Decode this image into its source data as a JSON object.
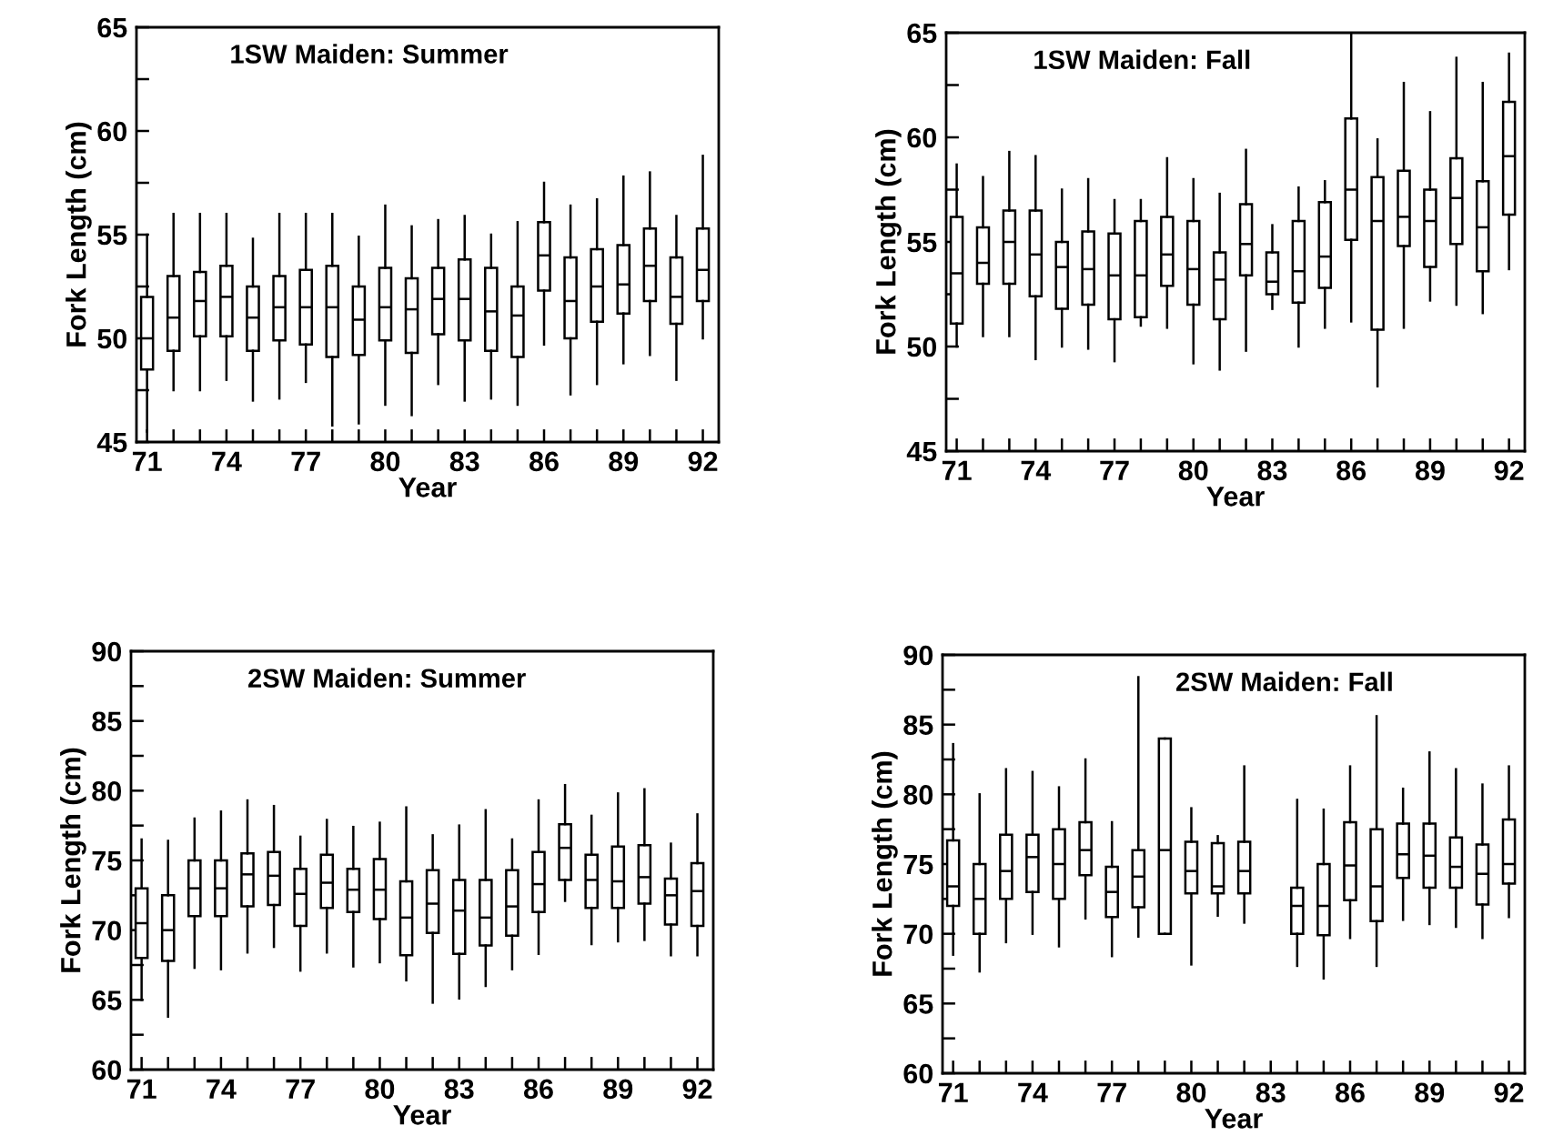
{
  "chart_data": [
    {
      "type": "box",
      "title": "1SW Maiden: Summer",
      "xlabel": "Year",
      "ylabel": "Fork Length (cm)",
      "x": [
        71,
        72,
        73,
        74,
        75,
        76,
        77,
        78,
        79,
        80,
        81,
        82,
        83,
        84,
        85,
        86,
        87,
        88,
        89,
        90,
        91,
        92
      ],
      "xlim": [
        70.6,
        92.6
      ],
      "xticks": [
        71,
        {
          "value": 72,
          "label": null
        },
        {
          "value": 73,
          "label": null
        },
        74,
        {
          "value": 75,
          "label": null
        },
        {
          "value": 76,
          "label": null
        },
        77,
        {
          "value": 78,
          "label": null
        },
        {
          "value": 79,
          "label": null
        },
        80,
        {
          "value": 81,
          "label": null
        },
        {
          "value": 82,
          "label": null
        },
        83,
        {
          "value": 84,
          "label": null
        },
        {
          "value": 85,
          "label": null
        },
        86,
        {
          "value": 87,
          "label": null
        },
        {
          "value": 88,
          "label": null
        },
        89,
        {
          "value": 90,
          "label": null
        },
        {
          "value": 91,
          "label": null
        },
        92
      ],
      "ylim": [
        45,
        65
      ],
      "yticks": [
        45,
        {
          "value": 47.5,
          "label": null
        },
        50,
        {
          "value": 52.5,
          "label": null
        },
        55,
        {
          "value": 57.5,
          "label": null
        },
        60,
        {
          "value": 62.5,
          "label": null
        },
        65
      ],
      "grid": false,
      "boxes": [
        {
          "low": 45.5,
          "q1": 48.5,
          "median": 50,
          "q3": 52,
          "high": 55
        },
        {
          "low": 47.5,
          "q1": 49.4,
          "median": 51,
          "q3": 53,
          "high": 56
        },
        {
          "low": 47.5,
          "q1": 50.1,
          "median": 51.8,
          "q3": 53.2,
          "high": 56
        },
        {
          "low": 48,
          "q1": 50.1,
          "median": 52,
          "q3": 53.5,
          "high": 56
        },
        {
          "low": 47,
          "q1": 49.4,
          "median": 51,
          "q3": 52.5,
          "high": 54.8
        },
        {
          "low": 47.1,
          "q1": 49.9,
          "median": 51.5,
          "q3": 53,
          "high": 56
        },
        {
          "low": 47.9,
          "q1": 49.7,
          "median": 51.5,
          "q3": 53.3,
          "high": 56
        },
        {
          "low": 45.8,
          "q1": 49.1,
          "median": 51.5,
          "q3": 53.5,
          "high": 56
        },
        {
          "low": 45.9,
          "q1": 49.2,
          "median": 50.9,
          "q3": 52.5,
          "high": 54.9
        },
        {
          "low": 46.8,
          "q1": 49.9,
          "median": 51.5,
          "q3": 53.4,
          "high": 56.4
        },
        {
          "low": 46.3,
          "q1": 49.3,
          "median": 51.4,
          "q3": 52.9,
          "high": 55.4
        },
        {
          "low": 47.8,
          "q1": 50.2,
          "median": 51.9,
          "q3": 53.4,
          "high": 55.7
        },
        {
          "low": 47,
          "q1": 49.9,
          "median": 51.9,
          "q3": 53.8,
          "high": 55.9
        },
        {
          "low": 47.1,
          "q1": 49.4,
          "median": 51.3,
          "q3": 53.4,
          "high": 55
        },
        {
          "low": 46.8,
          "q1": 49.1,
          "median": 51.1,
          "q3": 52.5,
          "high": 55.6
        },
        {
          "low": 49.7,
          "q1": 52.3,
          "median": 54,
          "q3": 55.6,
          "high": 57.5
        },
        {
          "low": 47.3,
          "q1": 50,
          "median": 51.8,
          "q3": 53.9,
          "high": 56.4
        },
        {
          "low": 47.8,
          "q1": 50.8,
          "median": 52.5,
          "q3": 54.3,
          "high": 56.7
        },
        {
          "low": 48.8,
          "q1": 51.2,
          "median": 52.6,
          "q3": 54.5,
          "high": 57.8
        },
        {
          "low": 49.2,
          "q1": 51.8,
          "median": 53.5,
          "q3": 55.3,
          "high": 58
        },
        {
          "low": 48,
          "q1": 50.7,
          "median": 52,
          "q3": 53.9,
          "high": 55.9
        },
        {
          "low": 50,
          "q1": 51.8,
          "median": 53.3,
          "q3": 55.3,
          "high": 58.8
        }
      ]
    },
    {
      "type": "box",
      "title": "1SW Maiden: Fall",
      "xlabel": "Year",
      "ylabel": "Fork Length (cm)",
      "x": [
        71,
        72,
        73,
        74,
        75,
        76,
        77,
        78,
        79,
        80,
        81,
        82,
        83,
        84,
        85,
        86,
        87,
        88,
        89,
        90,
        91,
        92
      ],
      "xlim": [
        70.6,
        92.6
      ],
      "xticks": [
        71,
        {
          "value": 72,
          "label": null
        },
        {
          "value": 73,
          "label": null
        },
        74,
        {
          "value": 75,
          "label": null
        },
        {
          "value": 76,
          "label": null
        },
        77,
        {
          "value": 78,
          "label": null
        },
        {
          "value": 79,
          "label": null
        },
        80,
        {
          "value": 81,
          "label": null
        },
        {
          "value": 82,
          "label": null
        },
        83,
        {
          "value": 84,
          "label": null
        },
        {
          "value": 85,
          "label": null
        },
        86,
        {
          "value": 87,
          "label": null
        },
        {
          "value": 88,
          "label": null
        },
        89,
        {
          "value": 90,
          "label": null
        },
        {
          "value": 91,
          "label": null
        },
        92
      ],
      "ylim": [
        45,
        65
      ],
      "yticks": [
        45,
        {
          "value": 47.5,
          "label": null
        },
        50,
        {
          "value": 52.5,
          "label": null
        },
        55,
        {
          "value": 57.5,
          "label": null
        },
        60,
        {
          "value": 62.5,
          "label": null
        },
        65
      ],
      "grid": false,
      "boxes": [
        {
          "low": 50,
          "q1": 51.1,
          "median": 53.5,
          "q3": 56.2,
          "high": 58.7
        },
        {
          "low": 50.5,
          "q1": 53,
          "median": 54,
          "q3": 55.7,
          "high": 58.1
        },
        {
          "low": 50.5,
          "q1": 53,
          "median": 55,
          "q3": 56.5,
          "high": 59.3
        },
        {
          "low": 49.4,
          "q1": 52.4,
          "median": 54.4,
          "q3": 56.5,
          "high": 59.1
        },
        {
          "low": 50,
          "q1": 51.8,
          "median": 53.8,
          "q3": 55,
          "high": 57.5
        },
        {
          "low": 49.9,
          "q1": 52,
          "median": 53.7,
          "q3": 55.5,
          "high": 58
        },
        {
          "low": 49.3,
          "q1": 51.3,
          "median": 53.4,
          "q3": 55.4,
          "high": 57
        },
        {
          "low": 51,
          "q1": 51.4,
          "median": 53.4,
          "q3": 56,
          "high": 57
        },
        {
          "low": 50.9,
          "q1": 52.9,
          "median": 54.4,
          "q3": 56.2,
          "high": 59
        },
        {
          "low": 49.2,
          "q1": 52,
          "median": 53.7,
          "q3": 56,
          "high": 58
        },
        {
          "low": 48.9,
          "q1": 51.3,
          "median": 53.2,
          "q3": 54.5,
          "high": 57.3
        },
        {
          "low": 49.8,
          "q1": 53.4,
          "median": 54.9,
          "q3": 56.8,
          "high": 59.4
        },
        {
          "low": 51.8,
          "q1": 52.5,
          "median": 53.1,
          "q3": 54.5,
          "high": 55.8
        },
        {
          "low": 50,
          "q1": 52.1,
          "median": 53.6,
          "q3": 56,
          "high": 57.6
        },
        {
          "low": 50.9,
          "q1": 52.8,
          "median": 54.3,
          "q3": 56.9,
          "high": 57.9
        },
        {
          "low": 51.2,
          "q1": 55.1,
          "median": 57.5,
          "q3": 60.9,
          "high": 65
        },
        {
          "low": 48.1,
          "q1": 50.8,
          "median": 56,
          "q3": 58.1,
          "high": 59.9
        },
        {
          "low": 50.9,
          "q1": 54.8,
          "median": 56.2,
          "q3": 58.4,
          "high": 62.6
        },
        {
          "low": 52.2,
          "q1": 53.8,
          "median": 56,
          "q3": 57.5,
          "high": 61.2
        },
        {
          "low": 52,
          "q1": 54.9,
          "median": 57.1,
          "q3": 59,
          "high": 63.8
        },
        {
          "low": 51.6,
          "q1": 53.6,
          "median": 55.7,
          "q3": 57.9,
          "high": 62.6
        },
        {
          "low": 53.7,
          "q1": 56.3,
          "median": 59.1,
          "q3": 61.7,
          "high": 64
        }
      ]
    },
    {
      "type": "box",
      "title": "2SW Maiden: Summer",
      "xlabel": "Year",
      "ylabel": "Fork Length (cm)",
      "x": [
        71,
        72,
        73,
        74,
        75,
        76,
        77,
        78,
        79,
        80,
        81,
        82,
        83,
        84,
        85,
        86,
        87,
        88,
        89,
        90,
        91,
        92
      ],
      "xlim": [
        70.6,
        92.6
      ],
      "xticks": [
        71,
        {
          "value": 72,
          "label": null
        },
        {
          "value": 73,
          "label": null
        },
        74,
        {
          "value": 75,
          "label": null
        },
        {
          "value": 76,
          "label": null
        },
        77,
        {
          "value": 78,
          "label": null
        },
        {
          "value": 79,
          "label": null
        },
        80,
        {
          "value": 81,
          "label": null
        },
        {
          "value": 82,
          "label": null
        },
        83,
        {
          "value": 84,
          "label": null
        },
        {
          "value": 85,
          "label": null
        },
        86,
        {
          "value": 87,
          "label": null
        },
        {
          "value": 88,
          "label": null
        },
        89,
        {
          "value": 90,
          "label": null
        },
        {
          "value": 91,
          "label": null
        },
        92
      ],
      "ylim": [
        60,
        90
      ],
      "yticks": [
        60,
        {
          "value": 62.5,
          "label": null
        },
        65,
        {
          "value": 67.5,
          "label": null
        },
        70,
        {
          "value": 72.5,
          "label": null
        },
        75,
        {
          "value": 77.5,
          "label": null
        },
        80,
        {
          "value": 82.5,
          "label": null
        },
        85,
        {
          "value": 87.5,
          "label": null
        },
        90
      ],
      "grid": false,
      "boxes": [
        {
          "low": 65,
          "q1": 68,
          "median": 70.5,
          "q3": 73,
          "high": 76.5
        },
        {
          "low": 63.8,
          "q1": 67.8,
          "median": 70,
          "q3": 72.5,
          "high": 76.4
        },
        {
          "low": 67.3,
          "q1": 71,
          "median": 73,
          "q3": 75,
          "high": 78
        },
        {
          "low": 67.2,
          "q1": 71,
          "median": 73,
          "q3": 75,
          "high": 78.5
        },
        {
          "low": 68.4,
          "q1": 71.7,
          "median": 74,
          "q3": 75.5,
          "high": 79.3
        },
        {
          "low": 68.8,
          "q1": 71.8,
          "median": 73.9,
          "q3": 75.6,
          "high": 78.9
        },
        {
          "low": 67.1,
          "q1": 70.3,
          "median": 72.6,
          "q3": 74.4,
          "high": 76.7
        },
        {
          "low": 68.4,
          "q1": 71.6,
          "median": 73.4,
          "q3": 75.4,
          "high": 77.9
        },
        {
          "low": 67.4,
          "q1": 71.3,
          "median": 72.9,
          "q3": 74.4,
          "high": 77.4
        },
        {
          "low": 67.7,
          "q1": 70.8,
          "median": 72.9,
          "q3": 75.1,
          "high": 77.7
        },
        {
          "low": 66.4,
          "q1": 68.2,
          "median": 70.9,
          "q3": 73.5,
          "high": 78.8
        },
        {
          "low": 64.8,
          "q1": 69.8,
          "median": 71.9,
          "q3": 74.3,
          "high": 76.8
        },
        {
          "low": 65.1,
          "q1": 68.3,
          "median": 71.4,
          "q3": 73.6,
          "high": 77.5
        },
        {
          "low": 66,
          "q1": 68.9,
          "median": 70.9,
          "q3": 73.6,
          "high": 78.6
        },
        {
          "low": 67.2,
          "q1": 69.6,
          "median": 71.7,
          "q3": 74.3,
          "high": 76.5
        },
        {
          "low": 68.3,
          "q1": 71.3,
          "median": 73.3,
          "q3": 75.6,
          "high": 79.3
        },
        {
          "low": 72.1,
          "q1": 73.6,
          "median": 75.9,
          "q3": 77.6,
          "high": 80.4
        },
        {
          "low": 69,
          "q1": 71.6,
          "median": 73.6,
          "q3": 75.4,
          "high": 78.2
        },
        {
          "low": 69.2,
          "q1": 71.6,
          "median": 73.5,
          "q3": 76,
          "high": 79.8
        },
        {
          "low": 69.3,
          "q1": 71.9,
          "median": 73.8,
          "q3": 76.1,
          "high": 80.1
        },
        {
          "low": 68.2,
          "q1": 70.4,
          "median": 72.5,
          "q3": 73.7,
          "high": 76.2
        },
        {
          "low": 68.2,
          "q1": 70.3,
          "median": 72.8,
          "q3": 74.8,
          "high": 78.3
        }
      ]
    },
    {
      "type": "box",
      "title": "2SW Maiden: Fall",
      "xlabel": "Year",
      "ylabel": "Fork Length (cm)",
      "x": [
        71,
        72,
        73,
        74,
        75,
        76,
        77,
        78,
        79,
        80,
        81,
        82,
        84,
        85,
        86,
        87,
        88,
        89,
        90,
        91,
        92
      ],
      "xlim": [
        70.6,
        92.6
      ],
      "xticks": [
        71,
        {
          "value": 72,
          "label": null
        },
        {
          "value": 73,
          "label": null
        },
        74,
        {
          "value": 75,
          "label": null
        },
        {
          "value": 76,
          "label": null
        },
        77,
        {
          "value": 78,
          "label": null
        },
        {
          "value": 79,
          "label": null
        },
        80,
        {
          "value": 81,
          "label": null
        },
        {
          "value": 82,
          "label": null
        },
        83,
        {
          "value": 84,
          "label": null
        },
        {
          "value": 85,
          "label": null
        },
        86,
        {
          "value": 87,
          "label": null
        },
        {
          "value": 88,
          "label": null
        },
        89,
        {
          "value": 90,
          "label": null
        },
        {
          "value": 91,
          "label": null
        },
        92
      ],
      "ylim": [
        60,
        90
      ],
      "yticks": [
        60,
        {
          "value": 62.5,
          "label": null
        },
        65,
        {
          "value": 67.5,
          "label": null
        },
        70,
        {
          "value": 72.5,
          "label": null
        },
        75,
        {
          "value": 77.5,
          "label": null
        },
        80,
        {
          "value": 82.5,
          "label": null
        },
        85,
        {
          "value": 87.5,
          "label": null
        },
        90
      ],
      "grid": false,
      "boxes": [
        {
          "low": 68.5,
          "q1": 72,
          "median": 73.4,
          "q3": 76.7,
          "high": 83.6
        },
        {
          "low": 67.3,
          "q1": 70,
          "median": 72.5,
          "q3": 75,
          "high": 80
        },
        {
          "low": 69.4,
          "q1": 72.5,
          "median": 74.5,
          "q3": 77.1,
          "high": 81.8
        },
        {
          "low": 70,
          "q1": 73,
          "median": 75.5,
          "q3": 77.1,
          "high": 81.6
        },
        {
          "low": 69.1,
          "q1": 72.5,
          "median": 75,
          "q3": 77.5,
          "high": 80.5
        },
        {
          "low": 71.1,
          "q1": 74.2,
          "median": 76,
          "q3": 78,
          "high": 82.5
        },
        {
          "low": 68.4,
          "q1": 71.2,
          "median": 73,
          "q3": 74.8,
          "high": 78
        },
        {
          "low": 69.8,
          "q1": 71.9,
          "median": 74.1,
          "q3": 76,
          "high": 88.4
        },
        {
          "low": 70,
          "q1": 70,
          "median": 76,
          "q3": 84,
          "high": 84
        },
        {
          "low": 67.8,
          "q1": 72.9,
          "median": 74.5,
          "q3": 76.6,
          "high": 79
        },
        {
          "low": 71.3,
          "q1": 72.9,
          "median": 73.4,
          "q3": 76.5,
          "high": 77
        },
        {
          "low": 70.8,
          "q1": 72.9,
          "median": 74.5,
          "q3": 76.6,
          "high": 82
        },
        {
          "low": 67.7,
          "q1": 70,
          "median": 72,
          "q3": 73.3,
          "high": 79.6
        },
        {
          "low": 66.8,
          "q1": 69.9,
          "median": 72,
          "q3": 75,
          "high": 78.9
        },
        {
          "low": 69.7,
          "q1": 72.4,
          "median": 74.9,
          "q3": 78,
          "high": 82
        },
        {
          "low": 67.7,
          "q1": 70.9,
          "median": 73.4,
          "q3": 77.5,
          "high": 85.6
        },
        {
          "low": 71,
          "q1": 74,
          "median": 75.7,
          "q3": 77.9,
          "high": 80.4
        },
        {
          "low": 70.7,
          "q1": 73.3,
          "median": 75.6,
          "q3": 77.9,
          "high": 83
        },
        {
          "low": 70.5,
          "q1": 73.3,
          "median": 74.8,
          "q3": 76.9,
          "high": 81.8
        },
        {
          "low": 69.7,
          "q1": 72.1,
          "median": 74.3,
          "q3": 76.4,
          "high": 80.7
        },
        {
          "low": 71.2,
          "q1": 73.6,
          "median": 75,
          "q3": 78.2,
          "high": 82
        }
      ]
    }
  ]
}
